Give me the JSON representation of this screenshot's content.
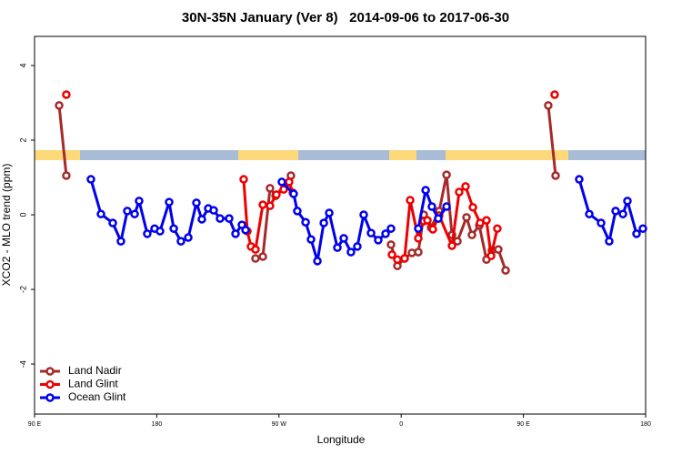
{
  "chart_data": {
    "type": "line",
    "title": "30N-35N January (Ver 8)   2014-09-06 to 2017-06-30",
    "x_label": "Longitude",
    "y_label": "XCO2 - MLO trend (ppm)",
    "xlim": [
      90,
      540
    ],
    "xticks": [
      {
        "value": 90,
        "label": "90 E"
      },
      {
        "value": 180,
        "label": "180"
      },
      {
        "value": 270,
        "label": "90 W"
      },
      {
        "value": 360,
        "label": "0"
      },
      {
        "value": 450,
        "label": "90 E"
      },
      {
        "value": 540,
        "label": "180"
      }
    ],
    "ylim": [
      -5.34,
      4.78
    ],
    "yticks": [
      -4,
      -2,
      0,
      2,
      4
    ],
    "grid": false,
    "legend": "bottom-left",
    "series": [
      {
        "name": "Land Nadir",
        "color": "#a52a2a",
        "x": [
          108.1,
          113.4,
          null,
          252.7,
          258.1,
          263.4,
          267.5,
          274.2,
          278.8,
          null,
          352.5,
          357.2,
          362.5,
          367.9,
          372.6,
          376.6,
          382.0,
          388.0,
          393.4,
          397.4,
          401.4,
          408.1,
          412.1,
          417.5,
          422.8,
          426.8,
          431.5,
          436.9,
          null,
          468.3,
          473.7
        ],
        "values": [
          2.93,
          1.05,
          null,
          -1.17,
          -1.12,
          0.71,
          0.51,
          0.8,
          1.05,
          null,
          -0.8,
          -1.37,
          -1.17,
          -1.02,
          -1.0,
          0.0,
          -0.34,
          0.1,
          1.07,
          -0.54,
          -0.71,
          -0.07,
          -0.54,
          -0.29,
          -1.2,
          -0.95,
          -0.93,
          -1.49,
          null,
          2.93,
          1.05
        ]
      },
      {
        "name": "Land Glint",
        "color": "#ee0000",
        "x": [
          113.4,
          null,
          244.0,
          246.7,
          249.4,
          252.7,
          258.1,
          263.4,
          268.1,
          273.5,
          277.5,
          280.2,
          null,
          353.2,
          357.2,
          362.5,
          366.6,
          372.6,
          376.6,
          379.3,
          383.3,
          388.0,
          397.4,
          402.7,
          407.4,
          412.8,
          418.1,
          422.8,
          426.2,
          430.8,
          null,
          473.0
        ],
        "values": [
          3.22,
          null,
          0.95,
          -0.44,
          -0.85,
          -0.93,
          0.27,
          0.24,
          0.54,
          0.68,
          0.88,
          0.59,
          null,
          -1.07,
          -1.2,
          -1.17,
          0.39,
          -0.63,
          -0.17,
          -0.15,
          -0.39,
          -0.02,
          -0.83,
          0.61,
          0.76,
          0.2,
          -0.22,
          -0.15,
          -1.1,
          -0.37,
          null,
          3.22
        ]
      },
      {
        "name": "Ocean Glint",
        "color": "#0000ee",
        "x": [
          131.5,
          138.9,
          147.6,
          153.6,
          158.3,
          163.7,
          167.0,
          173.0,
          178.4,
          182.4,
          189.1,
          192.5,
          197.8,
          203.2,
          209.2,
          213.2,
          217.9,
          221.9,
          226.6,
          233.3,
          238.0,
          242.7,
          245.4,
          null,
          272.1,
          280.8,
          283.5,
          289.6,
          293.6,
          298.3,
          303.0,
          307.0,
          313.0,
          317.7,
          323.0,
          327.7,
          332.4,
          337.8,
          343.1,
          348.5,
          352.5,
          null,
          372.6,
          378.0,
          382.6,
          387.3,
          393.4,
          null,
          491.1,
          498.5,
          507.2,
          513.2,
          517.9,
          523.3,
          526.6,
          533.3,
          538.0
        ],
        "values": [
          0.95,
          0.02,
          -0.22,
          -0.71,
          0.1,
          0.02,
          0.37,
          -0.51,
          -0.37,
          -0.44,
          0.34,
          -0.37,
          -0.71,
          -0.61,
          0.32,
          -0.12,
          0.17,
          0.12,
          -0.1,
          -0.1,
          -0.51,
          -0.27,
          -0.41,
          null,
          0.88,
          0.56,
          0.1,
          -0.2,
          -0.66,
          -1.24,
          -0.22,
          0.05,
          -0.88,
          -0.63,
          -1.0,
          -0.85,
          0.0,
          -0.49,
          -0.68,
          -0.51,
          -0.37,
          null,
          -0.37,
          0.66,
          0.22,
          -0.1,
          0.22,
          null,
          0.95,
          0.02,
          -0.22,
          -0.71,
          0.1,
          0.02,
          0.37,
          -0.51,
          -0.37
        ]
      }
    ]
  }
}
